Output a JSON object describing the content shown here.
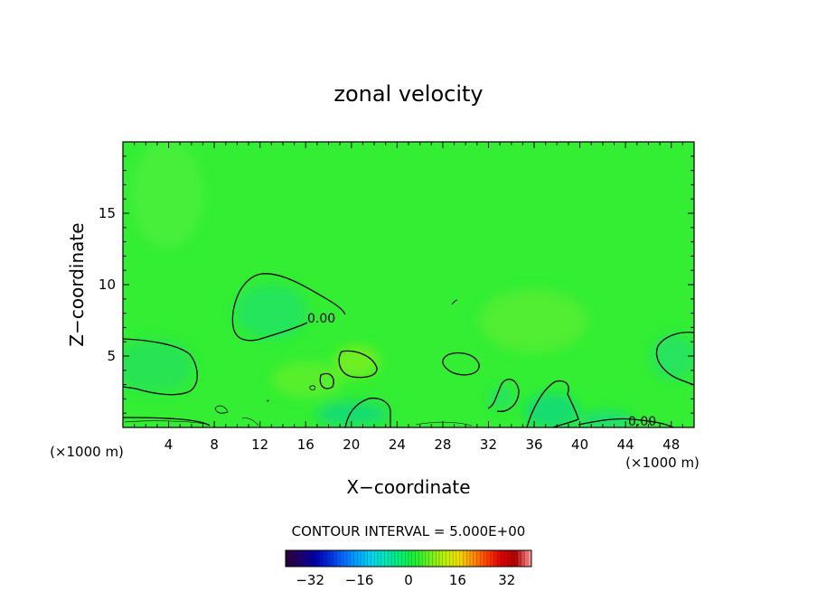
{
  "chart_data": {
    "type": "heatmap",
    "title": "zonal velocity",
    "xlabel": "X−coordinate",
    "ylabel": "Z−coordinate",
    "x_unit_left": "(×1000 m)",
    "x_unit_right": "(×1000 m)",
    "xlim": [
      0,
      50
    ],
    "ylim": [
      0,
      20
    ],
    "x_ticks": [
      {
        "value": 4,
        "label": "4"
      },
      {
        "value": 8,
        "label": "8"
      },
      {
        "value": 12,
        "label": "12"
      },
      {
        "value": 16,
        "label": "16"
      },
      {
        "value": 20,
        "label": "20"
      },
      {
        "value": 24,
        "label": "24"
      },
      {
        "value": 28,
        "label": "28"
      },
      {
        "value": 32,
        "label": "32"
      },
      {
        "value": 36,
        "label": "36"
      },
      {
        "value": 40,
        "label": "40"
      },
      {
        "value": 44,
        "label": "44"
      },
      {
        "value": 48,
        "label": "48"
      }
    ],
    "y_ticks": [
      {
        "value": 5,
        "label": "5"
      },
      {
        "value": 10,
        "label": "10"
      },
      {
        "value": 15,
        "label": "15"
      }
    ],
    "contour_interval_text": "CONTOUR INTERVAL = 5.000E+00",
    "contour_labels": [
      {
        "text": "0.00",
        "x": 17.8,
        "y": 7.4
      },
      {
        "text": "0.00",
        "x": 45.5,
        "y": 0.4
      }
    ],
    "colorbar": {
      "range": [
        -40,
        40
      ],
      "ticks": [
        {
          "value": -32,
          "label": "−32"
        },
        {
          "value": -16,
          "label": "−16"
        },
        {
          "value": 0,
          "label": "0"
        },
        {
          "value": 16,
          "label": "16"
        },
        {
          "value": 32,
          "label": "32"
        }
      ],
      "colors": [
        "#2a0040",
        "#1a0070",
        "#0000b0",
        "#0030e0",
        "#0070ff",
        "#00aaff",
        "#00d8e8",
        "#00e8b0",
        "#00f070",
        "#20f030",
        "#70f020",
        "#b8f000",
        "#f0e000",
        "#ff9000",
        "#ff4000",
        "#e00000",
        "#b00000",
        "#ff9090"
      ]
    },
    "background_value_color": "#33ee33",
    "grid": false,
    "legend": "none"
  }
}
